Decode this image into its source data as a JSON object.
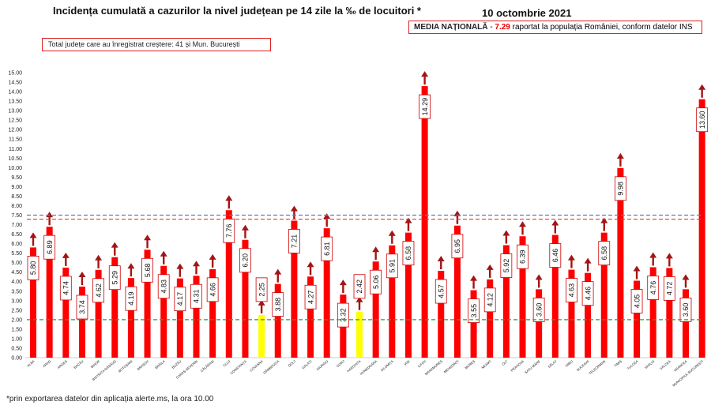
{
  "header": {
    "title": "Incidența cumulată a cazurilor la nivel județean pe 14 zile la ‰ de locuitori *",
    "date": "10 octombrie 2021"
  },
  "national_box": {
    "label": "MEDIA NAȚIONALĂ",
    "dash": " - ",
    "value": "7.29",
    "text": " raportat la populația României, conform datelor INS"
  },
  "increase_box": {
    "text": "Total județe care au înregistrat creștere:  41 și Mun. București"
  },
  "footnote": {
    "text": "*prin exportarea datelor din aplicația alerte.ms, la ora 10.00"
  },
  "colors": {
    "bar": "#ff0000",
    "bar_highlight": "#ffff00",
    "arrow": "#a31515",
    "national_line": "#e53935",
    "blue_line": "#5b7fc8",
    "green_line": "#2e9e3e"
  },
  "chart_data": {
    "type": "bar",
    "title": "Incidența cumulată a cazurilor la nivel județean pe 14 zile la ‰ de locuitori *",
    "ylim": [
      0,
      15
    ],
    "yticks": [
      "0.00",
      "0.50",
      "1.00",
      "1.50",
      "2.00",
      "2.50",
      "3.00",
      "3.50",
      "4.00",
      "4.50",
      "5.00",
      "5.50",
      "6.00",
      "6.50",
      "7.00",
      "7.50",
      "8.00",
      "8.50",
      "9.00",
      "9.50",
      "10.00",
      "10.50",
      "11.00",
      "11.50",
      "12.00",
      "12.50",
      "13.00",
      "13.50",
      "14.00",
      "14.50",
      "15.00"
    ],
    "categories": [
      "ALBA",
      "ARAD",
      "ARGEȘ",
      "BACĂU",
      "BIHOR",
      "BISTRIȚA-NĂSĂUD",
      "BOTOȘANI",
      "BRAȘOV",
      "BRĂILA",
      "BUZĂU",
      "CARAȘ-SEVERIN",
      "CĂLĂRAȘI",
      "CLUJ",
      "CONSTANȚA",
      "COVASNA",
      "DÂMBOVIȚA",
      "DOLJ",
      "GALAȚI",
      "GIURGIU",
      "GORJ",
      "HARGHITA",
      "HUNEDOARA",
      "IALOMIȚA",
      "IAȘI",
      "ILFOV",
      "MARAMUREȘ",
      "MEHEDINȚI",
      "MUREȘ",
      "NEAMȚ",
      "OLT",
      "PRAHOVA",
      "SATU MARE",
      "SĂLAJ",
      "SIBIU",
      "SUCEAVA",
      "TELEORMAN",
      "TIMIȘ",
      "TULCEA",
      "VASLUI",
      "VÂLCEA",
      "VRANCEA",
      "MUNICIPIUL BUCUREȘTI"
    ],
    "values": [
      5.8,
      6.89,
      4.74,
      3.74,
      4.62,
      5.29,
      4.19,
      5.68,
      4.83,
      4.17,
      4.31,
      4.66,
      7.76,
      6.2,
      2.25,
      3.88,
      7.21,
      4.27,
      6.81,
      3.32,
      2.42,
      5.06,
      5.91,
      6.58,
      14.29,
      4.57,
      6.95,
      3.55,
      4.12,
      5.92,
      6.39,
      3.6,
      6.46,
      4.63,
      4.46,
      6.58,
      9.98,
      4.05,
      4.76,
      4.72,
      3.6,
      13.6
    ],
    "value_labels": [
      "5.80",
      "6.89",
      "4.74",
      "3.74",
      "4.62",
      "5.29",
      "4.19",
      "5.68",
      "4.83",
      "4.17",
      "4.31",
      "4.66",
      "7.76",
      "6.20",
      "2.25",
      "3.88",
      "7.21",
      "4.27",
      "6.81",
      "3.32",
      "2.42",
      "5.06",
      "5.91",
      "6.58",
      "14.29",
      "4.57",
      "6.95",
      "3.55",
      "4.12",
      "5.92",
      "6.39",
      "3.60",
      "6.46",
      "4.63",
      "4.46",
      "6.58",
      "9.98",
      "4.05",
      "4.76",
      "4.72",
      "3.60",
      "13.60"
    ],
    "highlighted": [
      "COVASNA",
      "HARGHITA"
    ],
    "reference_lines": [
      {
        "value": 7.29,
        "style": "dashed",
        "color": "#e53935"
      },
      {
        "value": 7.5,
        "style": "dashed",
        "color": "#5b7fc8"
      },
      {
        "value": 2.0,
        "style": "dashed",
        "color": "#2e9e3e"
      }
    ],
    "xlabel": "",
    "ylabel": "",
    "grid": false,
    "legend": "none"
  }
}
